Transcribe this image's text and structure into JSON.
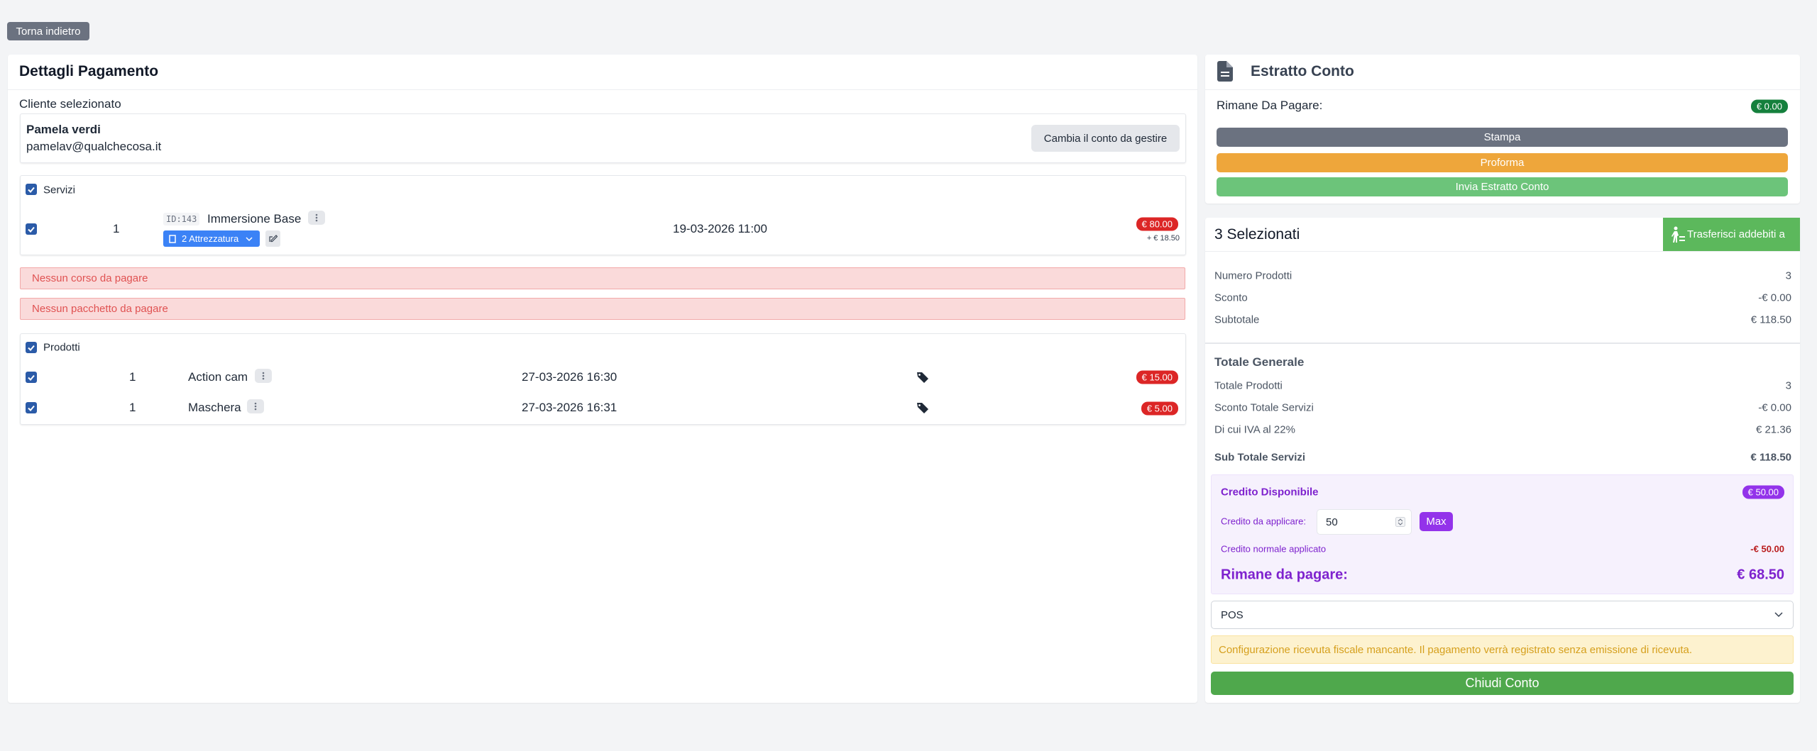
{
  "back_button": "Torna indietro",
  "payment": {
    "title": "Dettagli Pagamento",
    "client_label": "Cliente selezionato",
    "client_name": "Pamela verdi",
    "client_email": "pamelav@qualchecosa.it",
    "change_account": "Cambia il conto da gestire",
    "services": {
      "label": "Servizi",
      "items": [
        {
          "qty": 1,
          "id": "ID:143",
          "name": "Immersione Base",
          "equipment": "2 Attrezzatura",
          "date": "19-03-2026 11:00",
          "price": "€ 80.00",
          "extra": "+ € 18.50"
        }
      ]
    },
    "alerts": [
      "Nessun corso da pagare",
      "Nessun pacchetto da pagare"
    ],
    "products": {
      "label": "Prodotti",
      "items": [
        {
          "qty": 1,
          "name": "Action cam",
          "date": "27-03-2026 16:30",
          "price": "€ 15.00"
        },
        {
          "qty": 1,
          "name": "Maschera",
          "date": "27-03-2026 16:31",
          "price": "€ 5.00"
        }
      ]
    }
  },
  "statement": {
    "title": "Estratto Conto",
    "remaining_label": "Rimane Da Pagare:",
    "remaining_value": "€ 0.00",
    "buttons": [
      "Stampa",
      "Proforma",
      "Invia Estratto Conto"
    ]
  },
  "summary": {
    "title": "3 Selezionati",
    "transfer": "Trasferisci addebiti a",
    "rows": [
      [
        "Numero Prodotti",
        "3"
      ],
      [
        "Sconto",
        "-€ 0.00"
      ],
      [
        "Subtotale",
        "€ 118.50"
      ]
    ],
    "total_title": "Totale Generale",
    "total_rows": [
      [
        "Totale Prodotti",
        "3"
      ],
      [
        "Sconto Totale Servizi",
        "-€ 0.00"
      ],
      [
        "Di cui IVA al 22%",
        "€ 21.36"
      ]
    ],
    "sub_total": [
      "Sub Totale Servizi",
      "€ 118.50"
    ],
    "credit": {
      "title": "Credito Disponibile",
      "available": "€ 50.00",
      "apply_label": "Credito da applicare:",
      "apply_value": "50",
      "max": "Max",
      "applied_label": "Credito normale applicato",
      "applied_value": "-€ 50.00",
      "remaining_label": "Rimane da pagare:",
      "remaining_value": "€ 68.50"
    },
    "payment_method": "POS",
    "warning": "Configurazione ricevuta fiscale mancante. Il pagamento verrà registrato senza emissione di ricevuta.",
    "close": "Chiudi Conto"
  }
}
